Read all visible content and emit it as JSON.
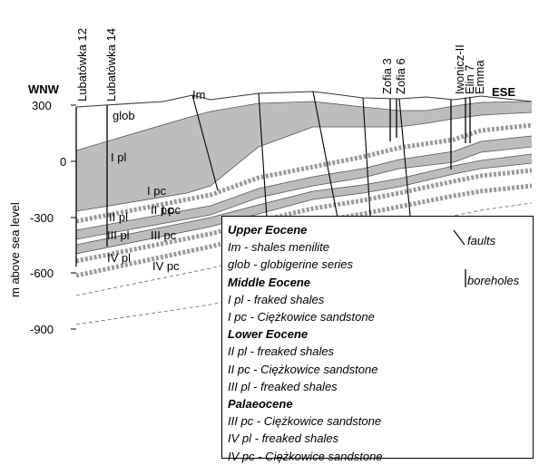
{
  "cross_section": {
    "direction_left": "WNW",
    "direction_right": "ESE",
    "y_axis_label": "m above sea level",
    "y_ticks": [
      "300",
      "0",
      "-300",
      "-600",
      "-900"
    ],
    "boreholes": [
      "Lubatówka 12",
      "Lubatówka 14",
      "Zofia 3",
      "Zofia 6",
      "Iwonicz-II",
      "Elin 7",
      "Emma"
    ],
    "unit_labels": {
      "im": "Im",
      "glob": "glob",
      "i_pl": "I pl",
      "i_pc_a": "I pc",
      "i_pc_b": "I pc",
      "ii_pl": "II pl",
      "ii_pc": "II pc",
      "iii_pl": "III pl",
      "iii_pc": "III pc",
      "iv_pl": "IV pl",
      "iv_pc": "IV pc"
    }
  },
  "legend": {
    "sections": [
      {
        "header": "Upper Eocene",
        "items": [
          "Im - shales menilite",
          "glob - globigerine series"
        ]
      },
      {
        "header": "Middle Eocene",
        "items": [
          "I pl - fraked shales",
          "I pc - Ciężkowice sandstone"
        ]
      },
      {
        "header": "Lower Eocene",
        "items": [
          "II pl - freaked shales",
          "II pc - Ciężkowice sandstone",
          "III pl - freaked shales"
        ]
      },
      {
        "header": "Palaeocene",
        "items": [
          "III pc - Ciężkowice sandstone",
          "IV pl - freaked shales",
          "IV pc -  Ciężkowice sandstone"
        ]
      }
    ],
    "faults_label": "faults",
    "boreholes_label": "boreholes"
  }
}
